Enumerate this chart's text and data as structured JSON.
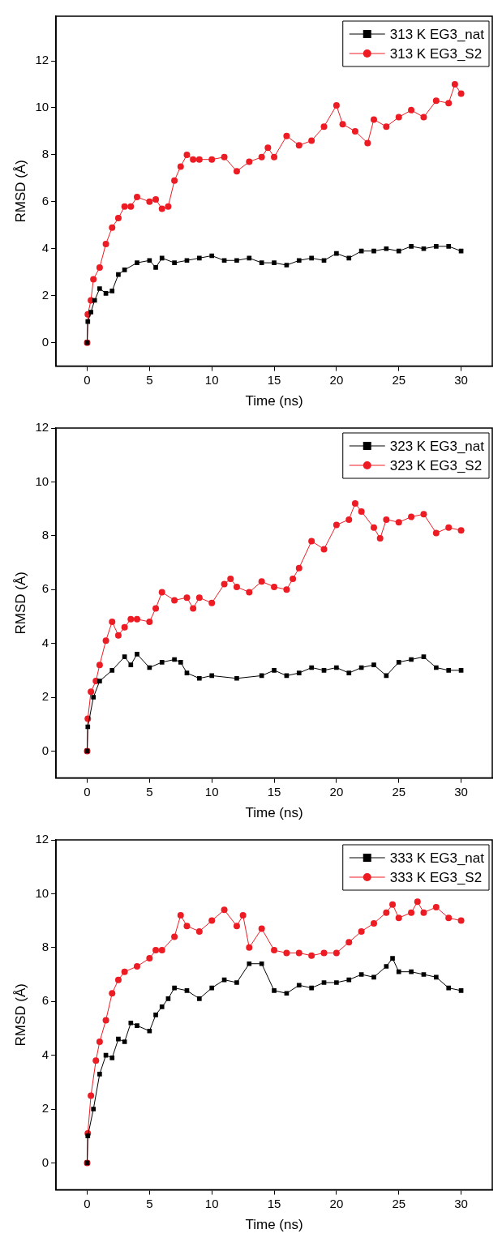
{
  "chart_data": [
    {
      "type": "line",
      "xlabel": "Time (ns)",
      "ylabel": "RMSD (Å)",
      "xlim": [
        -2.5,
        32.5
      ],
      "xticks": [
        0,
        5,
        10,
        15,
        20,
        25,
        30
      ],
      "ylim": [
        -1,
        13.9
      ],
      "yticks": [
        0,
        2,
        4,
        6,
        8,
        10,
        12
      ],
      "grid": false,
      "legend": "top right",
      "series": [
        {
          "name": "313 K EG3_nat",
          "color": "#000000",
          "marker": "square",
          "x": [
            0,
            0.05,
            0.3,
            0.6,
            1,
            1.5,
            2,
            2.5,
            3,
            4,
            5,
            5.5,
            6,
            7,
            8,
            9,
            10,
            11,
            12,
            13,
            14,
            15,
            16,
            17,
            18,
            19,
            20,
            21,
            22,
            23,
            24,
            25,
            26,
            27,
            28,
            29,
            30
          ],
          "values": [
            0,
            0.9,
            1.3,
            1.8,
            2.3,
            2.1,
            2.2,
            2.9,
            3.1,
            3.4,
            3.5,
            3.2,
            3.6,
            3.4,
            3.5,
            3.6,
            3.7,
            3.5,
            3.5,
            3.6,
            3.4,
            3.4,
            3.3,
            3.5,
            3.6,
            3.5,
            3.8,
            3.6,
            3.9,
            3.9,
            4.0,
            3.9,
            4.1,
            4.0,
            4.1,
            4.1,
            3.9
          ]
        },
        {
          "name": "313 K EG3_S2",
          "color": "#ed1c24",
          "marker": "circle",
          "x": [
            0,
            0.05,
            0.3,
            0.5,
            1,
            1.5,
            2,
            2.5,
            3,
            3.5,
            4,
            5,
            5.5,
            6,
            6.5,
            7,
            7.5,
            8,
            8.5,
            9,
            10,
            11,
            12,
            13,
            14,
            14.5,
            15,
            16,
            17,
            18,
            19,
            20,
            20.5,
            21.5,
            22.5,
            23,
            24,
            25,
            26,
            27,
            28,
            29,
            29.5,
            30
          ],
          "values": [
            0,
            1.2,
            1.8,
            2.7,
            3.2,
            4.2,
            4.9,
            5.3,
            5.8,
            5.8,
            6.2,
            6.0,
            6.1,
            5.7,
            5.8,
            6.9,
            7.5,
            8.0,
            7.8,
            7.8,
            7.8,
            7.9,
            7.3,
            7.7,
            7.9,
            8.3,
            7.9,
            8.8,
            8.4,
            8.6,
            9.2,
            10.1,
            9.3,
            9.0,
            8.5,
            9.5,
            9.2,
            9.6,
            9.9,
            9.6,
            10.3,
            10.2,
            11.0,
            10.6
          ]
        }
      ]
    },
    {
      "type": "line",
      "xlabel": "Time (ns)",
      "ylabel": "RMSD (Å)",
      "xlim": [
        -2.5,
        32.5
      ],
      "xticks": [
        0,
        5,
        10,
        15,
        20,
        25,
        30
      ],
      "ylim": [
        -1,
        12
      ],
      "yticks": [
        0,
        2,
        4,
        6,
        8,
        10,
        12
      ],
      "grid": false,
      "legend": "top right",
      "series": [
        {
          "name": "323 K EG3_nat",
          "color": "#000000",
          "marker": "square",
          "x": [
            0,
            0.05,
            0.5,
            1,
            2,
            3,
            3.5,
            4,
            5,
            6,
            7,
            7.5,
            8,
            9,
            10,
            12,
            14,
            15,
            16,
            17,
            18,
            19,
            20,
            21,
            22,
            23,
            24,
            25,
            26,
            27,
            28,
            29,
            30
          ],
          "values": [
            0,
            0.9,
            2.0,
            2.6,
            3.0,
            3.5,
            3.2,
            3.6,
            3.1,
            3.3,
            3.4,
            3.3,
            2.9,
            2.7,
            2.8,
            2.7,
            2.8,
            3.0,
            2.8,
            2.9,
            3.1,
            3.0,
            3.1,
            2.9,
            3.1,
            3.2,
            2.8,
            3.3,
            3.4,
            3.5,
            3.1,
            3.0,
            3.0
          ]
        },
        {
          "name": "323 K EG3_S2",
          "color": "#ed1c24",
          "marker": "circle",
          "x": [
            0,
            0.05,
            0.3,
            0.7,
            1,
            1.5,
            2,
            2.5,
            3,
            3.5,
            4,
            5,
            5.5,
            6,
            7,
            8,
            8.5,
            9,
            10,
            11,
            11.5,
            12,
            13,
            14,
            15,
            16,
            16.5,
            17,
            18,
            19,
            20,
            21,
            21.5,
            22,
            23,
            23.5,
            24,
            25,
            26,
            27,
            28,
            29,
            30
          ],
          "values": [
            0,
            1.2,
            2.2,
            2.6,
            3.2,
            4.1,
            4.8,
            4.3,
            4.6,
            4.9,
            4.9,
            4.8,
            5.3,
            5.9,
            5.6,
            5.7,
            5.3,
            5.7,
            5.5,
            6.2,
            6.4,
            6.1,
            5.9,
            6.3,
            6.1,
            6.0,
            6.4,
            6.8,
            7.8,
            7.5,
            8.4,
            8.6,
            9.2,
            8.9,
            8.3,
            7.9,
            8.6,
            8.5,
            8.7,
            8.8,
            8.1,
            8.3,
            8.2
          ]
        }
      ]
    },
    {
      "type": "line",
      "xlabel": "Time (ns)",
      "ylabel": "RMSD (Å)",
      "xlim": [
        -2.5,
        32.5
      ],
      "xticks": [
        0,
        5,
        10,
        15,
        20,
        25,
        30
      ],
      "ylim": [
        -1,
        12
      ],
      "yticks": [
        0,
        2,
        4,
        6,
        8,
        10,
        12
      ],
      "grid": false,
      "legend": "top right",
      "series": [
        {
          "name": "333 K EG3_nat",
          "color": "#000000",
          "marker": "square",
          "x": [
            0,
            0.05,
            0.5,
            1,
            1.5,
            2,
            2.5,
            3,
            3.5,
            4,
            5,
            5.5,
            6,
            6.5,
            7,
            8,
            9,
            10,
            11,
            12,
            13,
            14,
            15,
            16,
            17,
            18,
            19,
            20,
            21,
            22,
            23,
            24,
            24.5,
            25,
            26,
            27,
            28,
            29,
            30
          ],
          "values": [
            0,
            1.0,
            2.0,
            3.3,
            4.0,
            3.9,
            4.6,
            4.5,
            5.2,
            5.1,
            4.9,
            5.5,
            5.8,
            6.1,
            6.5,
            6.4,
            6.1,
            6.5,
            6.8,
            6.7,
            7.4,
            7.4,
            6.4,
            6.3,
            6.6,
            6.5,
            6.7,
            6.7,
            6.8,
            7.0,
            6.9,
            7.3,
            7.6,
            7.1,
            7.1,
            7.0,
            6.9,
            6.5,
            6.4
          ]
        },
        {
          "name": "333 K EG3_S2",
          "color": "#ed1c24",
          "marker": "circle",
          "x": [
            0,
            0.05,
            0.3,
            0.7,
            1,
            1.5,
            2,
            2.5,
            3,
            4,
            5,
            5.5,
            6,
            7,
            7.5,
            8,
            9,
            10,
            11,
            12,
            12.5,
            13,
            14,
            15,
            16,
            17,
            18,
            19,
            20,
            21,
            22,
            23,
            24,
            24.5,
            25,
            26,
            26.5,
            27,
            28,
            29,
            30
          ],
          "values": [
            0,
            1.1,
            2.5,
            3.8,
            4.5,
            5.3,
            6.3,
            6.8,
            7.1,
            7.3,
            7.6,
            7.9,
            7.9,
            8.4,
            9.2,
            8.8,
            8.6,
            9.0,
            9.4,
            8.8,
            9.2,
            8.0,
            8.7,
            7.9,
            7.8,
            7.8,
            7.7,
            7.8,
            7.8,
            8.2,
            8.6,
            8.9,
            9.3,
            9.6,
            9.1,
            9.3,
            9.7,
            9.3,
            9.5,
            9.1,
            9.0
          ]
        }
      ]
    }
  ]
}
